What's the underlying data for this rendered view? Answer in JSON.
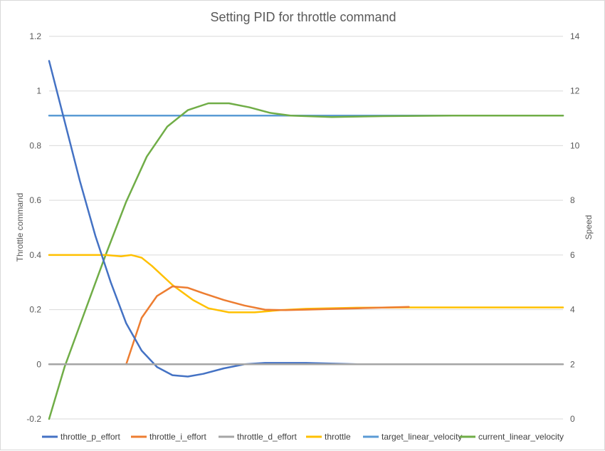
{
  "chart_data": {
    "type": "line",
    "title": "Setting PID for throttle command",
    "ylabel": "Throttle command",
    "y2label": "Speed",
    "ylim": [
      -0.2,
      1.2
    ],
    "y2lim": [
      0,
      14
    ],
    "y_ticks": [
      "1.2",
      "1",
      "0.8",
      "0.6",
      "0.4",
      "0.2",
      "0",
      "-0.2"
    ],
    "y2_ticks": [
      "14",
      "12",
      "10",
      "8",
      "6",
      "4",
      "2",
      "0"
    ],
    "grid": true,
    "legend_position": "bottom",
    "x_range": [
      0,
      1
    ],
    "series": [
      {
        "name": "throttle_p_effort",
        "axis": "left",
        "color": "#4472C4",
        "x": [
          0,
          0.03,
          0.06,
          0.09,
          0.12,
          0.15,
          0.18,
          0.21,
          0.24,
          0.27,
          0.3,
          0.34,
          0.38,
          0.42,
          0.5,
          0.6,
          0.7,
          0.8
        ],
        "y": [
          1.11,
          0.89,
          0.67,
          0.47,
          0.3,
          0.15,
          0.05,
          -0.01,
          -0.04,
          -0.045,
          -0.035,
          -0.015,
          0.0,
          0.005,
          0.005,
          0.0,
          0.0,
          0.0
        ]
      },
      {
        "name": "throttle_i_effort",
        "axis": "left",
        "color": "#ED7D31",
        "x": [
          0.15,
          0.18,
          0.21,
          0.24,
          0.27,
          0.3,
          0.34,
          0.38,
          0.42,
          0.46,
          0.5,
          0.6,
          0.7
        ],
        "y": [
          0.0,
          0.17,
          0.25,
          0.285,
          0.28,
          0.26,
          0.235,
          0.215,
          0.2,
          0.198,
          0.2,
          0.205,
          0.21
        ]
      },
      {
        "name": "throttle_d_effort",
        "axis": "left",
        "color": "#A5A5A5",
        "x": [
          0,
          1
        ],
        "y": [
          0,
          0
        ]
      },
      {
        "name": "throttle",
        "axis": "left",
        "color": "#FFC000",
        "x": [
          0,
          0.11,
          0.14,
          0.16,
          0.18,
          0.2,
          0.24,
          0.28,
          0.31,
          0.35,
          0.4,
          0.45,
          0.5,
          0.6,
          0.7,
          0.8,
          1.0
        ],
        "y": [
          0.4,
          0.4,
          0.395,
          0.4,
          0.39,
          0.36,
          0.29,
          0.235,
          0.205,
          0.19,
          0.19,
          0.198,
          0.203,
          0.207,
          0.208,
          0.208,
          0.208
        ]
      },
      {
        "name": "target_linear_velocity",
        "axis": "right",
        "color": "#5B9BD5",
        "x": [
          0,
          1
        ],
        "y": [
          11.1,
          11.1
        ]
      },
      {
        "name": "current_linear_velocity",
        "axis": "right",
        "color": "#70AD47",
        "x": [
          0,
          0.03,
          0.07,
          0.11,
          0.15,
          0.19,
          0.23,
          0.27,
          0.31,
          0.35,
          0.39,
          0.43,
          0.47,
          0.55,
          0.65,
          0.8,
          1.0
        ],
        "y": [
          0,
          1.9,
          3.95,
          6.0,
          7.95,
          9.6,
          10.7,
          11.3,
          11.55,
          11.55,
          11.4,
          11.2,
          11.1,
          11.05,
          11.08,
          11.1,
          11.1
        ]
      }
    ]
  }
}
